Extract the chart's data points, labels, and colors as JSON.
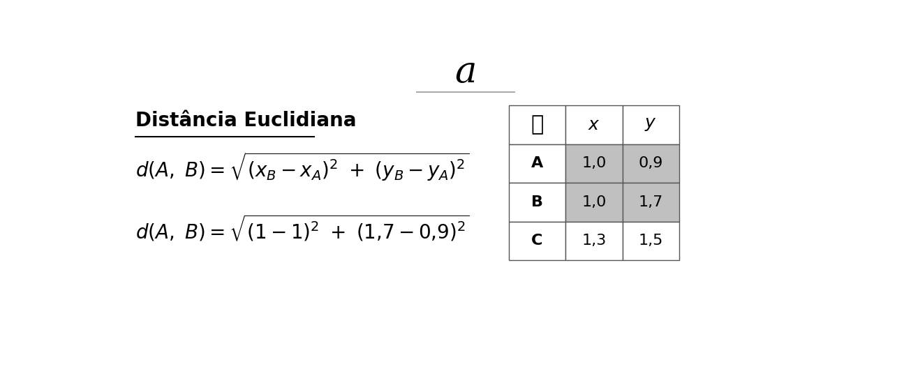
{
  "title": "a",
  "subtitle": "Distância Euclidiana",
  "formula1": "$d(A,\\ B) = \\sqrt{(x_B - x_A)^2\\ +\\ (y_B - y_A)^2}$",
  "formula2": "$d(A,\\ B) = \\sqrt{(1 - 1)^2\\ +\\ (1{,}7 - 0{,}9)^2}$",
  "bg_color": "#ffffff",
  "title_fontsize": 38,
  "subtitle_fontsize": 20,
  "formula_fontsize": 20,
  "table_rows": [
    "A",
    "B",
    "C"
  ],
  "table_x": [
    "1,0",
    "1,0",
    "1,3"
  ],
  "table_y": [
    "0,9",
    "1,7",
    "1,5"
  ],
  "highlight_rows": [
    0,
    1
  ],
  "cell_highlight_color": "#c0c0c0",
  "cell_normal_color": "#ffffff",
  "table_border_color": "#555555",
  "separator_color": "#aaaaaa"
}
